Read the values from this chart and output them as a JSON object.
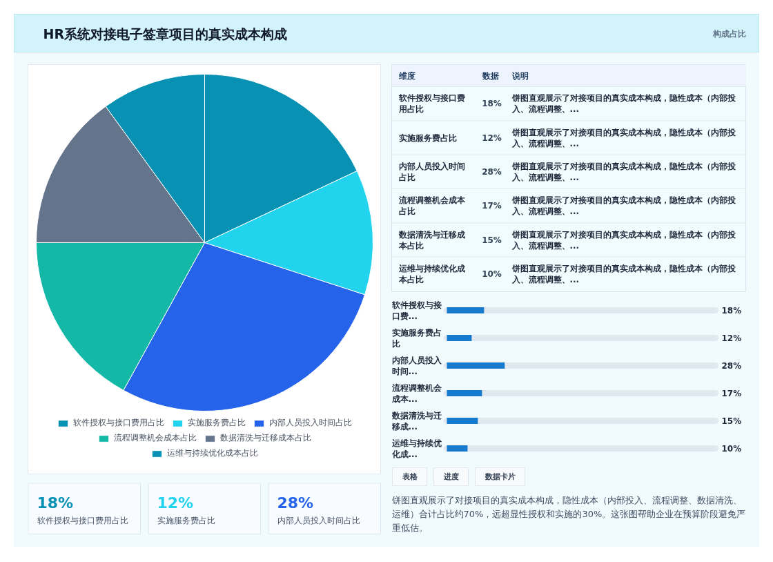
{
  "chart_data": [
    {
      "type": "other",
      "title": "HR系统对接电子签章项目的真实成本构成",
      "subtitle": "构成占比"
    },
    {
      "type": "pie",
      "categories": [
        "软件授权与接口费用占比",
        "实施服务费占比",
        "内部人员投入时间占比",
        "流程调整机会成本占比",
        "数据清洗与迁移成本占比",
        "运维与持续优化成本占比"
      ],
      "values": [
        18,
        12,
        28,
        17,
        15,
        10
      ],
      "colors": [
        "#0891b2",
        "#22d3ee",
        "#2563eb",
        "#14b8a6",
        "#64748b",
        "#0891b2"
      ],
      "legend": "bottom"
    },
    {
      "type": "other",
      "categories": [
        "软件授权与接口费用占比",
        "实施服务费占比",
        "内部人员投入时间占比",
        "流程调整机会成本占比",
        "数据清洗与迁移成本占比",
        "运维与持续优化成本占比"
      ],
      "value_labels": [
        "18%",
        "12%",
        "28%",
        "17%",
        "15%",
        "10%"
      ],
      "annotations": [
        "维度",
        "数据",
        "说明",
        "饼图直观展示了对接项目的真实成本构成，隐性成本（内部投入、流程调整、...",
        "饼图直观展示了对接项目的真实成本构成，隐性成本（内部投入、流程调整、...",
        "饼图直观展示了对接项目的真实成本构成，隐性成本（内部投入、流程调整、...",
        "饼图直观展示了对接项目的真实成本构成，隐性成本（内部投入、流程调整、...",
        "饼图直观展示了对接项目的真实成本构成，隐性成本（内部投入、流程调整、...",
        "饼图直观展示了对接项目的真实成本构成，隐性成本（内部投入、流程调整、..."
      ]
    },
    {
      "type": "bar",
      "orientation": "horizontal",
      "categories": [
        "软件授权与接口费...",
        "实施服务费占比",
        "内部人员投入时间...",
        "流程调整机会成本...",
        "数据清洗与迁移成...",
        "运维与持续优化成..."
      ],
      "values": [
        18,
        12,
        28,
        17,
        15,
        10
      ],
      "value_labels": [
        "18%",
        "12%",
        "28%",
        "17%",
        "15%",
        "10%"
      ],
      "color": "#167ace",
      "xlim": [
        0,
        130
      ],
      "tick_labels": "y"
    },
    {
      "type": "other",
      "categories": [
        "软件授权与接口费用占比",
        "实施服务费占比",
        "内部人员投入时间占比"
      ],
      "value_labels": [
        "18%",
        "12%",
        "28%"
      ]
    },
    {
      "type": "other",
      "annotations": [
        "表格",
        "进度",
        "数据卡片",
        "饼图直观展示了对接项目的真实成本构成，隐性成本（内部投入、流程调整、数据清洗、运维）合计占比约70%，远超显性授权和实施的30%。这张图帮助企业在预算阶段避免严重低估。"
      ]
    }
  ]
}
